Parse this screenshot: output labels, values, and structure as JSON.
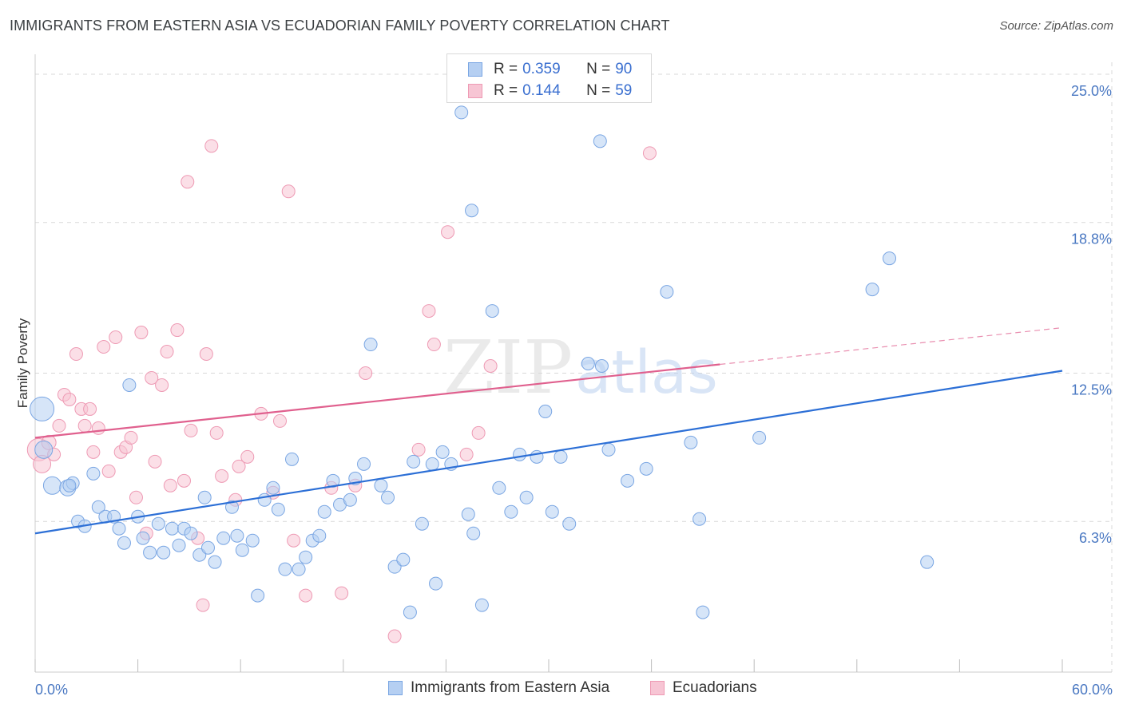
{
  "title": "IMMIGRANTS FROM EASTERN ASIA VS ECUADORIAN FAMILY POVERTY CORRELATION CHART",
  "source": "Source: ZipAtlas.com",
  "watermark": {
    "zip": "ZIP",
    "atlas": "atlas"
  },
  "colors": {
    "blue_fill": "#b5cff2",
    "blue_stroke": "#7aa6e3",
    "blue_line": "#2c6fd6",
    "pink_fill": "#f7c5d4",
    "pink_stroke": "#ee9ab4",
    "pink_line": "#e0608e",
    "grid": "#d9d9d9",
    "tick_text": "#4a78c2"
  },
  "legend": {
    "rows": [
      {
        "r_label": "R =",
        "r_value": "0.359",
        "n_label": "N =",
        "n_value": "90"
      },
      {
        "r_label": "R =",
        "r_value": "0.144",
        "n_label": "N =",
        "n_value": "59"
      }
    ]
  },
  "bottom_legend": {
    "series1": "Immigrants from Eastern Asia",
    "series2": "Ecuadorians"
  },
  "chart_data": {
    "type": "scatter",
    "title": "IMMIGRANTS FROM EASTERN ASIA VS ECUADORIAN FAMILY POVERTY CORRELATION CHART",
    "xlabel": "",
    "ylabel": "Family Poverty",
    "xlim": [
      0,
      60
    ],
    "ylim": [
      0,
      25.5
    ],
    "x_tick_labels": {
      "min": "0.0%",
      "max": "60.0%"
    },
    "y_ticks": [
      6.3,
      12.5,
      18.8,
      25.0
    ],
    "y_tick_labels": [
      "6.3%",
      "12.5%",
      "18.8%",
      "25.0%"
    ],
    "series": [
      {
        "name": "Immigrants from Eastern Asia",
        "color": "blue",
        "R": 0.359,
        "N": 90,
        "trend": {
          "x0": 0,
          "y0": 5.8,
          "x1": 60,
          "y1": 12.6,
          "solid_until": 60
        },
        "points": [
          [
            0.4,
            11.0,
            15
          ],
          [
            0.5,
            9.3,
            11
          ],
          [
            1.0,
            7.8,
            11
          ],
          [
            1.9,
            7.7,
            10
          ],
          [
            2.2,
            7.9,
            8
          ],
          [
            2.5,
            6.3,
            8
          ],
          [
            2.9,
            6.1,
            8
          ],
          [
            3.4,
            8.3,
            8
          ],
          [
            3.7,
            6.9,
            8
          ],
          [
            4.1,
            6.5,
            8
          ],
          [
            4.6,
            6.5,
            8
          ],
          [
            4.9,
            6.0,
            8
          ],
          [
            5.2,
            5.4,
            8
          ],
          [
            5.5,
            12.0,
            8
          ],
          [
            6.0,
            6.5,
            8
          ],
          [
            6.3,
            5.6,
            8
          ],
          [
            6.7,
            5.0,
            8
          ],
          [
            7.2,
            6.2,
            8
          ],
          [
            7.5,
            5.0,
            8
          ],
          [
            8.0,
            6.0,
            8
          ],
          [
            8.4,
            5.3,
            8
          ],
          [
            8.7,
            6.0,
            8
          ],
          [
            9.1,
            5.8,
            8
          ],
          [
            9.6,
            4.9,
            8
          ],
          [
            9.9,
            7.3,
            8
          ],
          [
            10.1,
            5.2,
            8
          ],
          [
            10.5,
            4.6,
            8
          ],
          [
            11.0,
            5.6,
            8
          ],
          [
            11.5,
            6.9,
            8
          ],
          [
            11.8,
            5.7,
            8
          ],
          [
            12.1,
            5.1,
            8
          ],
          [
            12.7,
            5.5,
            8
          ],
          [
            13.0,
            3.2,
            8
          ],
          [
            13.4,
            7.2,
            8
          ],
          [
            13.9,
            7.7,
            8
          ],
          [
            14.2,
            6.8,
            8
          ],
          [
            14.6,
            4.3,
            8
          ],
          [
            15.0,
            8.9,
            8
          ],
          [
            15.4,
            4.3,
            8
          ],
          [
            15.8,
            4.8,
            8
          ],
          [
            16.2,
            5.5,
            8
          ],
          [
            16.6,
            5.7,
            8
          ],
          [
            16.9,
            6.7,
            8
          ],
          [
            17.4,
            8.0,
            8
          ],
          [
            17.8,
            7.0,
            8
          ],
          [
            18.4,
            7.2,
            8
          ],
          [
            18.7,
            8.1,
            8
          ],
          [
            19.2,
            8.7,
            8
          ],
          [
            19.6,
            13.7,
            8
          ],
          [
            20.2,
            7.8,
            8
          ],
          [
            20.6,
            7.3,
            8
          ],
          [
            21.0,
            4.4,
            8
          ],
          [
            21.5,
            4.7,
            8
          ],
          [
            21.9,
            2.5,
            8
          ],
          [
            22.1,
            8.8,
            8
          ],
          [
            22.6,
            6.2,
            8
          ],
          [
            23.2,
            8.7,
            8
          ],
          [
            23.4,
            3.7,
            8
          ],
          [
            23.8,
            9.2,
            8
          ],
          [
            24.3,
            8.7,
            8
          ],
          [
            24.9,
            23.4,
            8
          ],
          [
            25.3,
            6.6,
            8
          ],
          [
            25.5,
            19.3,
            8
          ],
          [
            25.6,
            5.8,
            8
          ],
          [
            26.1,
            2.8,
            8
          ],
          [
            26.7,
            15.1,
            8
          ],
          [
            27.1,
            7.7,
            8
          ],
          [
            27.8,
            6.7,
            8
          ],
          [
            28.3,
            9.1,
            8
          ],
          [
            28.7,
            7.3,
            8
          ],
          [
            29.3,
            9.0,
            8
          ],
          [
            29.8,
            10.9,
            8
          ],
          [
            30.2,
            6.7,
            8
          ],
          [
            30.7,
            9.0,
            8
          ],
          [
            31.2,
            6.2,
            8
          ],
          [
            32.3,
            12.9,
            8
          ],
          [
            33.0,
            22.2,
            8
          ],
          [
            33.1,
            12.8,
            8
          ],
          [
            33.5,
            9.3,
            8
          ],
          [
            34.6,
            8.0,
            8
          ],
          [
            35.7,
            8.5,
            8
          ],
          [
            36.9,
            15.9,
            8
          ],
          [
            38.3,
            9.6,
            8
          ],
          [
            38.8,
            6.4,
            8
          ],
          [
            39.0,
            2.5,
            8
          ],
          [
            42.3,
            9.8,
            8
          ],
          [
            48.9,
            16.0,
            8
          ],
          [
            49.9,
            17.3,
            8
          ],
          [
            52.1,
            4.6,
            8
          ],
          [
            2.0,
            7.8,
            8
          ]
        ]
      },
      {
        "name": "Ecuadorians",
        "color": "pink",
        "R": 0.144,
        "N": 59,
        "trend": {
          "x0": 0,
          "y0": 9.8,
          "x1": 60,
          "y1": 14.4,
          "solid_until": 40
        },
        "points": [
          [
            0.2,
            9.3,
            14
          ],
          [
            0.4,
            8.7,
            11
          ],
          [
            0.8,
            9.6,
            9
          ],
          [
            1.1,
            9.1,
            8
          ],
          [
            1.4,
            10.3,
            8
          ],
          [
            1.7,
            11.6,
            8
          ],
          [
            2.0,
            11.4,
            8
          ],
          [
            2.4,
            13.3,
            8
          ],
          [
            2.7,
            11.0,
            8
          ],
          [
            2.9,
            10.3,
            8
          ],
          [
            3.2,
            11.0,
            8
          ],
          [
            3.4,
            9.2,
            8
          ],
          [
            3.7,
            10.2,
            8
          ],
          [
            4.0,
            13.6,
            8
          ],
          [
            4.3,
            8.4,
            8
          ],
          [
            4.7,
            14.0,
            8
          ],
          [
            5.0,
            9.2,
            8
          ],
          [
            5.3,
            9.4,
            8
          ],
          [
            5.6,
            9.8,
            8
          ],
          [
            5.9,
            7.3,
            8
          ],
          [
            6.2,
            14.2,
            8
          ],
          [
            6.5,
            5.8,
            8
          ],
          [
            6.8,
            12.3,
            8
          ],
          [
            7.0,
            8.8,
            8
          ],
          [
            7.4,
            12.0,
            8
          ],
          [
            7.7,
            13.4,
            8
          ],
          [
            7.9,
            7.8,
            8
          ],
          [
            8.3,
            14.3,
            8
          ],
          [
            8.7,
            8.0,
            8
          ],
          [
            8.9,
            20.5,
            8
          ],
          [
            9.1,
            10.1,
            8
          ],
          [
            9.5,
            5.6,
            8
          ],
          [
            9.8,
            2.8,
            8
          ],
          [
            10.0,
            13.3,
            8
          ],
          [
            10.3,
            22.0,
            8
          ],
          [
            10.6,
            10.0,
            8
          ],
          [
            10.9,
            8.2,
            8
          ],
          [
            11.7,
            7.2,
            8
          ],
          [
            11.9,
            8.6,
            8
          ],
          [
            12.4,
            9.0,
            8
          ],
          [
            13.2,
            10.8,
            8
          ],
          [
            13.9,
            7.5,
            8
          ],
          [
            14.3,
            10.5,
            8
          ],
          [
            14.8,
            20.1,
            8
          ],
          [
            15.1,
            5.5,
            8
          ],
          [
            15.8,
            3.2,
            8
          ],
          [
            17.3,
            7.7,
            8
          ],
          [
            17.9,
            3.3,
            8
          ],
          [
            18.7,
            7.8,
            8
          ],
          [
            19.3,
            12.5,
            8
          ],
          [
            21.0,
            1.5,
            8
          ],
          [
            22.4,
            9.3,
            8
          ],
          [
            23.0,
            15.1,
            8
          ],
          [
            23.3,
            13.7,
            8
          ],
          [
            24.1,
            18.4,
            8
          ],
          [
            25.2,
            9.1,
            8
          ],
          [
            25.9,
            10.0,
            8
          ],
          [
            26.6,
            12.8,
            8
          ],
          [
            35.9,
            21.7,
            8
          ]
        ]
      }
    ]
  }
}
